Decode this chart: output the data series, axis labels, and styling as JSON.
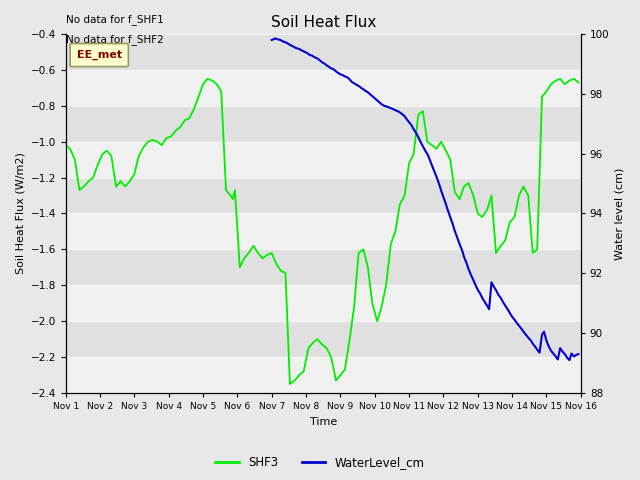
{
  "title": "Soil Heat Flux",
  "xlabel": "Time",
  "ylabel_left": "Soil Heat Flux (W/m2)",
  "ylabel_right": "Water level (cm)",
  "no_data_text": [
    "No data for f_SHF1",
    "No data for f_SHF2"
  ],
  "ee_met_label": "EE_met",
  "fig_facecolor": "#e8e8e8",
  "plot_bg_color": "#e0e0e0",
  "left_ylim": [
    -2.4,
    -0.4
  ],
  "right_ylim": [
    88,
    100
  ],
  "left_yticks": [
    -2.4,
    -2.2,
    -2.0,
    -1.8,
    -1.6,
    -1.4,
    -1.2,
    -1.0,
    -0.8,
    -0.6,
    -0.4
  ],
  "right_yticks": [
    88,
    90,
    92,
    94,
    96,
    98,
    100
  ],
  "xtick_labels": [
    "Nov 1",
    "Nov 2",
    "Nov 3",
    "Nov 4",
    "Nov 5",
    "Nov 6",
    "Nov 7",
    "Nov 8",
    "Nov 9",
    "Nov 10",
    "Nov 11",
    "Nov 12",
    "Nov 13",
    "Nov 14",
    "Nov 15",
    "Nov 16"
  ],
  "shf3_color": "#00ee00",
  "water_color": "#0000cc",
  "legend_labels": [
    "SHF3",
    "WaterLevel_cm"
  ],
  "shf3_x": [
    0.0,
    0.13,
    0.27,
    0.4,
    0.53,
    0.67,
    0.8,
    0.93,
    1.07,
    1.2,
    1.33,
    1.47,
    1.6,
    1.73,
    1.87,
    2.0,
    2.13,
    2.27,
    2.4,
    2.53,
    2.67,
    2.8,
    2.93,
    3.07,
    3.2,
    3.33,
    3.47,
    3.6,
    3.73,
    3.87,
    4.0,
    4.13,
    4.27,
    4.4,
    4.53,
    4.67,
    4.8,
    4.87,
    4.93,
    5.07,
    5.2,
    5.33,
    5.47,
    5.6,
    5.73,
    5.87,
    6.0,
    6.13,
    6.27,
    6.4,
    6.53,
    6.67,
    6.8,
    6.93,
    7.07,
    7.2,
    7.33,
    7.47,
    7.6,
    7.73,
    7.87,
    8.0,
    8.13,
    8.27,
    8.4,
    8.53,
    8.67,
    8.8,
    8.93,
    9.07,
    9.2,
    9.33,
    9.47,
    9.6,
    9.73,
    9.87,
    10.0,
    10.13,
    10.27,
    10.4,
    10.53,
    10.67,
    10.8,
    10.93,
    11.07,
    11.2,
    11.33,
    11.47,
    11.6,
    11.73,
    11.87,
    12.0,
    12.13,
    12.27,
    12.4,
    12.53,
    12.67,
    12.8,
    12.93,
    13.07,
    13.2,
    13.33,
    13.47,
    13.6,
    13.73,
    13.87,
    14.0,
    14.13,
    14.27,
    14.4,
    14.53,
    14.67,
    14.8,
    14.93
  ],
  "shf3_y": [
    -1.02,
    -1.04,
    -1.1,
    -1.27,
    -1.25,
    -1.22,
    -1.2,
    -1.13,
    -1.07,
    -1.05,
    -1.08,
    -1.25,
    -1.22,
    -1.25,
    -1.22,
    -1.18,
    -1.08,
    -1.03,
    -1.0,
    -0.99,
    -1.0,
    -1.02,
    -0.98,
    -0.97,
    -0.94,
    -0.92,
    -0.88,
    -0.87,
    -0.82,
    -0.75,
    -0.68,
    -0.65,
    -0.66,
    -0.68,
    -0.72,
    -1.27,
    -1.3,
    -1.32,
    -1.27,
    -1.7,
    -1.65,
    -1.62,
    -1.58,
    -1.62,
    -1.65,
    -1.63,
    -1.62,
    -1.68,
    -1.72,
    -1.73,
    -2.35,
    -2.33,
    -2.3,
    -2.28,
    -2.15,
    -2.12,
    -2.1,
    -2.13,
    -2.15,
    -2.2,
    -2.33,
    -2.3,
    -2.27,
    -2.1,
    -1.92,
    -1.62,
    -1.6,
    -1.7,
    -1.9,
    -2.0,
    -1.92,
    -1.8,
    -1.57,
    -1.5,
    -1.35,
    -1.3,
    -1.12,
    -1.07,
    -0.85,
    -0.83,
    -1.0,
    -1.02,
    -1.04,
    -1.0,
    -1.05,
    -1.1,
    -1.28,
    -1.32,
    -1.25,
    -1.23,
    -1.3,
    -1.4,
    -1.42,
    -1.38,
    -1.3,
    -1.62,
    -1.58,
    -1.55,
    -1.45,
    -1.42,
    -1.3,
    -1.25,
    -1.3,
    -1.62,
    -1.6,
    -0.75,
    -0.72,
    -0.68,
    -0.66,
    -0.65,
    -0.68,
    -0.66,
    -0.65,
    -0.67
  ],
  "water_x": [
    6.0,
    6.05,
    6.1,
    6.17,
    6.25,
    6.33,
    6.4,
    6.47,
    6.55,
    6.6,
    6.67,
    6.73,
    6.8,
    6.87,
    6.93,
    7.0,
    7.05,
    7.1,
    7.17,
    7.25,
    7.33,
    7.4,
    7.47,
    7.55,
    7.6,
    7.67,
    7.73,
    7.8,
    7.87,
    7.93,
    8.0,
    8.07,
    8.13,
    8.2,
    8.27,
    8.33,
    8.4,
    8.47,
    8.55,
    8.6,
    8.67,
    8.73,
    8.8,
    8.87,
    8.93,
    9.0,
    9.07,
    9.13,
    9.2,
    9.27,
    9.33,
    9.4,
    9.47,
    9.55,
    9.6,
    9.67,
    9.73,
    9.8,
    9.87,
    9.93,
    10.0,
    10.07,
    10.13,
    10.2,
    10.27,
    10.33,
    10.4,
    10.47,
    10.55,
    10.6,
    10.67,
    10.73,
    10.8,
    10.87,
    10.93,
    11.0,
    11.07,
    11.13,
    11.2,
    11.27,
    11.33,
    11.4,
    11.47,
    11.55,
    11.6,
    11.67,
    11.73,
    11.8,
    11.87,
    11.93,
    12.0,
    12.07,
    12.13,
    12.2,
    12.27,
    12.33,
    12.4,
    12.47,
    12.55,
    12.6,
    12.67,
    12.73,
    12.8,
    12.87,
    12.93,
    13.0,
    13.07,
    13.13,
    13.2,
    13.27,
    13.33,
    13.4,
    13.47,
    13.55,
    13.6,
    13.67,
    13.73,
    13.8,
    13.87,
    13.93,
    14.0,
    14.07,
    14.13,
    14.2,
    14.27,
    14.33,
    14.4,
    14.47,
    14.55,
    14.6,
    14.67,
    14.73,
    14.8,
    14.87,
    14.93
  ],
  "water_y": [
    99.8,
    99.82,
    99.85,
    99.82,
    99.8,
    99.75,
    99.72,
    99.68,
    99.62,
    99.6,
    99.55,
    99.52,
    99.5,
    99.45,
    99.42,
    99.38,
    99.35,
    99.3,
    99.28,
    99.22,
    99.18,
    99.12,
    99.05,
    99.0,
    98.95,
    98.9,
    98.85,
    98.82,
    98.75,
    98.7,
    98.65,
    98.62,
    98.58,
    98.55,
    98.48,
    98.4,
    98.35,
    98.3,
    98.25,
    98.2,
    98.15,
    98.1,
    98.05,
    97.98,
    97.92,
    97.85,
    97.78,
    97.72,
    97.65,
    97.6,
    97.58,
    97.55,
    97.52,
    97.48,
    97.45,
    97.42,
    97.38,
    97.32,
    97.25,
    97.15,
    97.05,
    96.95,
    96.82,
    96.7,
    96.55,
    96.4,
    96.25,
    96.1,
    95.95,
    95.8,
    95.6,
    95.42,
    95.22,
    95.0,
    94.78,
    94.55,
    94.32,
    94.1,
    93.88,
    93.65,
    93.42,
    93.2,
    92.98,
    92.75,
    92.55,
    92.35,
    92.15,
    91.95,
    91.78,
    91.62,
    91.45,
    91.32,
    91.18,
    91.05,
    90.92,
    90.8,
    91.7,
    91.55,
    91.4,
    91.28,
    91.18,
    91.05,
    90.92,
    90.8,
    90.68,
    90.55,
    90.45,
    90.35,
    90.25,
    90.15,
    90.05,
    89.95,
    89.85,
    89.75,
    89.65,
    89.55,
    89.45,
    89.35,
    89.95,
    90.05,
    89.75,
    89.55,
    89.42,
    89.32,
    89.22,
    89.12,
    89.5,
    89.38,
    89.28,
    89.18,
    89.1,
    89.32,
    89.22,
    89.28,
    89.3
  ]
}
